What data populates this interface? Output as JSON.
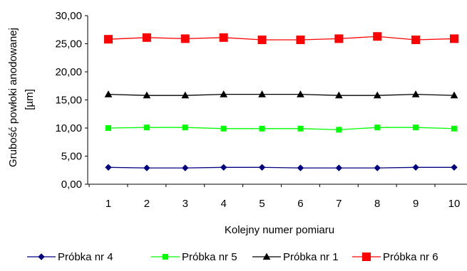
{
  "chart_data": {
    "type": "line",
    "xlabel": "Kolejny numer pomiaru",
    "ylabel": "Grubość powłoki anodowanej",
    "ylabel_unit": "[µm]",
    "ylim": [
      0,
      30
    ],
    "yticks": [
      "0,00",
      "5,00",
      "10,00",
      "15,00",
      "20,00",
      "25,00",
      "30,00"
    ],
    "ytick_values": [
      0,
      5,
      10,
      15,
      20,
      25,
      30
    ],
    "categories": [
      "1",
      "2",
      "3",
      "4",
      "5",
      "6",
      "7",
      "8",
      "9",
      "10"
    ],
    "grid": false,
    "legend_position": "bottom",
    "series": [
      {
        "name": "Próbka nr 4",
        "color": "#000080",
        "marker": "diamond",
        "values": [
          3.0,
          2.9,
          2.9,
          3.0,
          3.0,
          2.9,
          2.9,
          2.9,
          3.0,
          3.0
        ]
      },
      {
        "name": "Próbka nr 5",
        "color": "#00ff00",
        "marker": "square",
        "values": [
          10.0,
          10.1,
          10.1,
          9.9,
          9.9,
          9.9,
          9.7,
          10.1,
          10.1,
          9.9
        ]
      },
      {
        "name": "Próbka nr 1",
        "color": "#000000",
        "marker": "triangle",
        "values": [
          16.0,
          15.8,
          15.8,
          16.0,
          16.0,
          16.0,
          15.8,
          15.8,
          16.0,
          15.8
        ]
      },
      {
        "name": "Próbka nr 6",
        "color": "#ff0000",
        "marker": "square",
        "values": [
          25.8,
          26.1,
          25.9,
          26.1,
          25.7,
          25.7,
          25.9,
          26.3,
          25.7,
          25.9
        ]
      }
    ]
  }
}
